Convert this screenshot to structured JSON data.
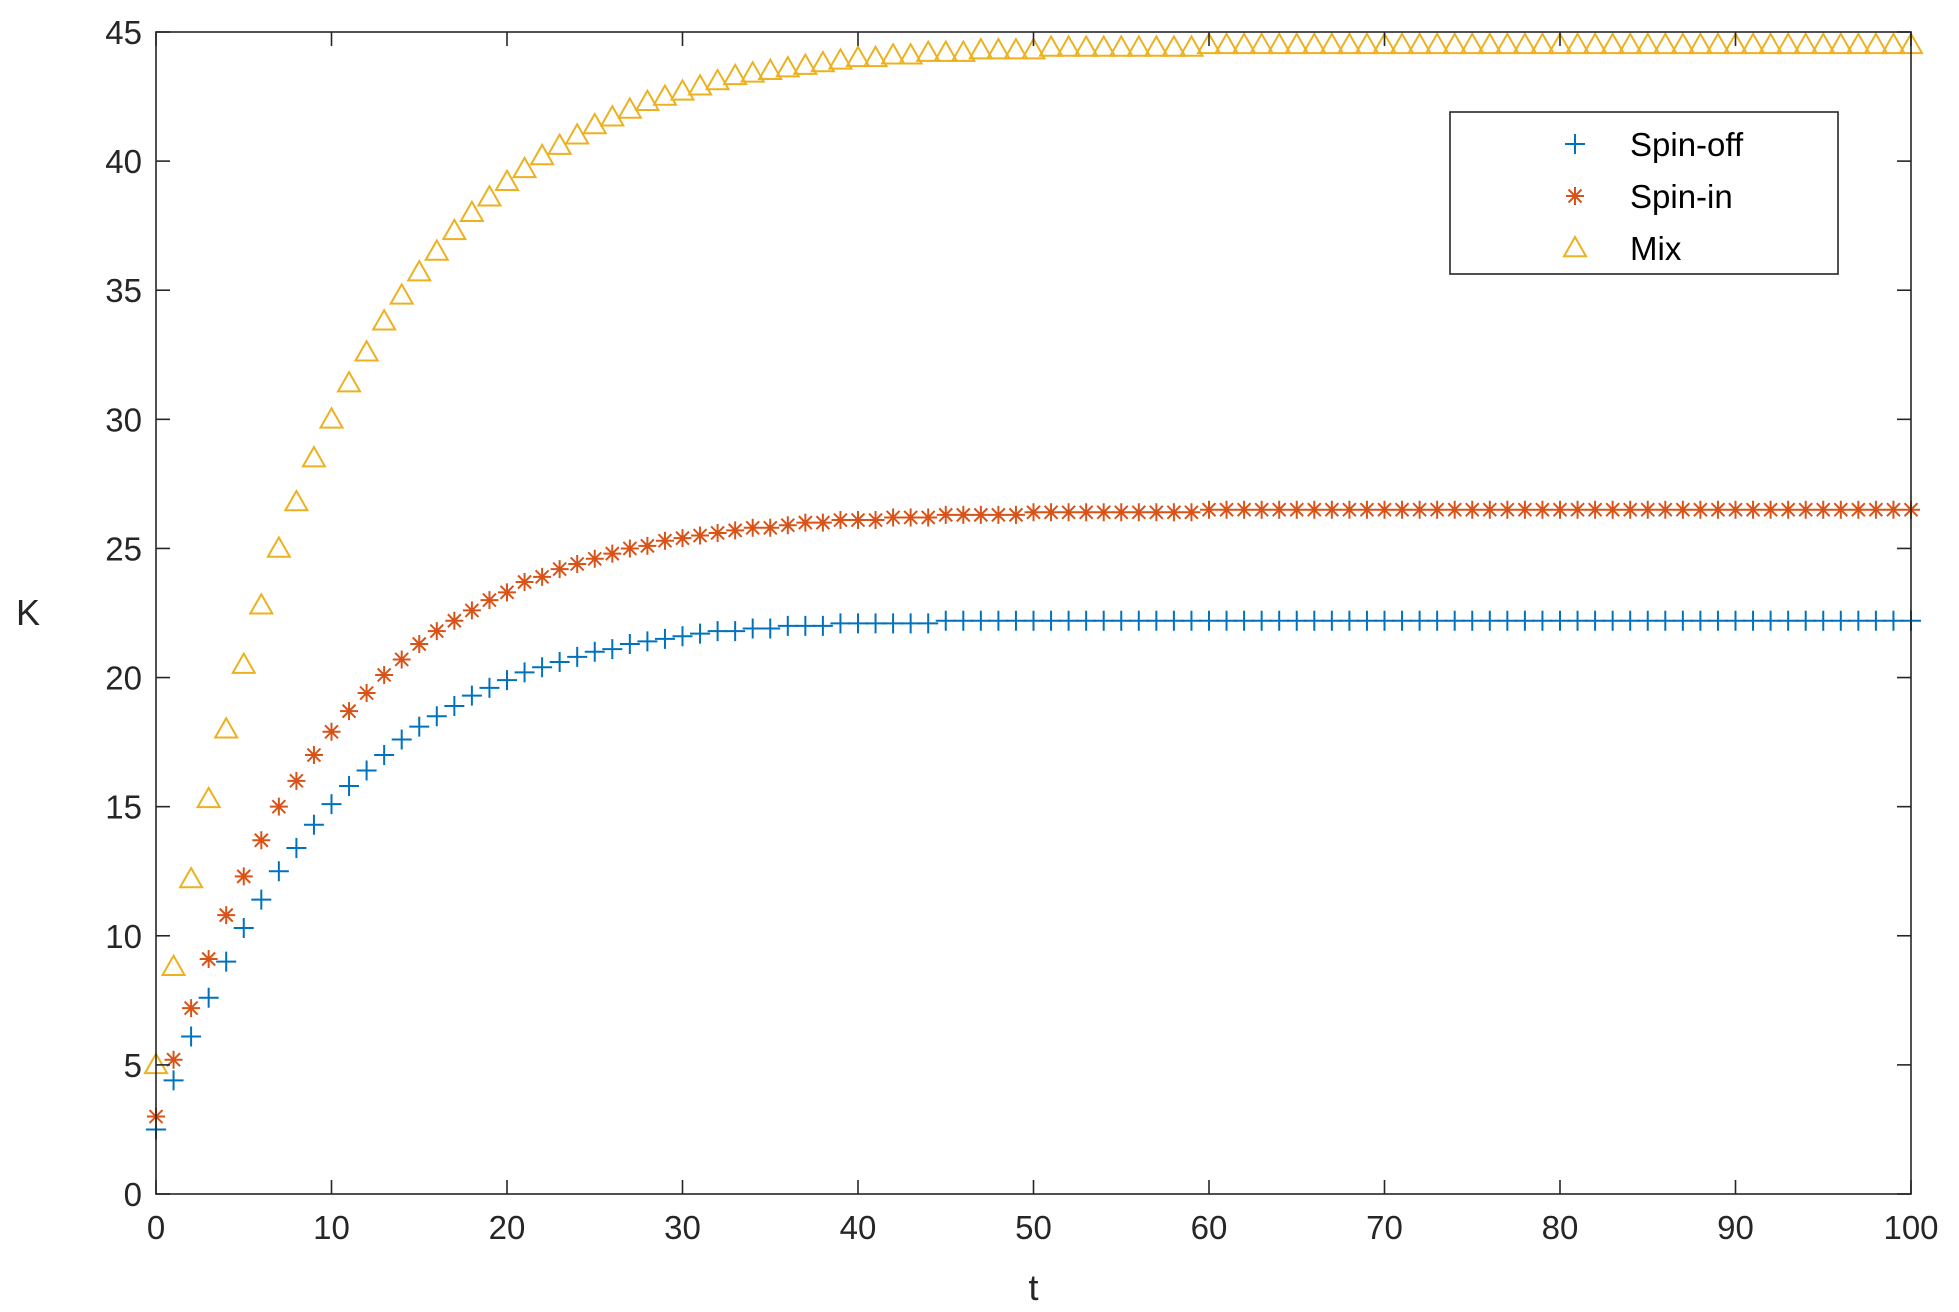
{
  "chart_data": {
    "type": "scatter",
    "xlabel": "t",
    "ylabel": "K",
    "xlim": [
      0,
      100
    ],
    "ylim": [
      0,
      45
    ],
    "xticks": [
      "0",
      "10",
      "20",
      "30",
      "40",
      "50",
      "60",
      "70",
      "80",
      "90",
      "100"
    ],
    "yticks": [
      "0",
      "5",
      "10",
      "15",
      "20",
      "25",
      "30",
      "35",
      "40",
      "45"
    ],
    "grid": false,
    "legend_position": "top-right",
    "x": [
      0,
      1,
      2,
      3,
      4,
      5,
      6,
      7,
      8,
      9,
      10,
      11,
      12,
      13,
      14,
      15,
      16,
      17,
      18,
      19,
      20,
      21,
      22,
      23,
      24,
      25,
      26,
      27,
      28,
      29,
      30,
      31,
      32,
      33,
      34,
      35,
      36,
      37,
      38,
      39,
      40,
      41,
      42,
      43,
      44,
      45,
      46,
      47,
      48,
      49,
      50,
      51,
      52,
      53,
      54,
      55,
      56,
      57,
      58,
      59,
      60,
      61,
      62,
      63,
      64,
      65,
      66,
      67,
      68,
      69,
      70,
      71,
      72,
      73,
      74,
      75,
      76,
      77,
      78,
      79,
      80,
      81,
      82,
      83,
      84,
      85,
      86,
      87,
      88,
      89,
      90,
      91,
      92,
      93,
      94,
      95,
      96,
      97,
      98,
      99,
      100
    ],
    "series": [
      {
        "name": "Spin-off",
        "marker": "plus",
        "color": "#0072BD",
        "values": [
          2.5,
          4.4,
          6.1,
          7.6,
          9.0,
          10.3,
          11.4,
          12.5,
          13.4,
          14.3,
          15.1,
          15.8,
          16.4,
          17.0,
          17.6,
          18.1,
          18.5,
          18.9,
          19.3,
          19.6,
          19.9,
          20.2,
          20.4,
          20.6,
          20.8,
          21.0,
          21.1,
          21.3,
          21.4,
          21.5,
          21.6,
          21.7,
          21.8,
          21.8,
          21.9,
          21.9,
          22.0,
          22.0,
          22.0,
          22.1,
          22.1,
          22.1,
          22.1,
          22.1,
          22.1,
          22.2,
          22.2,
          22.2,
          22.2,
          22.2,
          22.2,
          22.2,
          22.2,
          22.2,
          22.2,
          22.2,
          22.2,
          22.2,
          22.2,
          22.2,
          22.2,
          22.2,
          22.2,
          22.2,
          22.2,
          22.2,
          22.2,
          22.2,
          22.2,
          22.2,
          22.2,
          22.2,
          22.2,
          22.2,
          22.2,
          22.2,
          22.2,
          22.2,
          22.2,
          22.2,
          22.2,
          22.2,
          22.2,
          22.2,
          22.2,
          22.2,
          22.2,
          22.2,
          22.2,
          22.2,
          22.2,
          22.2,
          22.2,
          22.2,
          22.2,
          22.2,
          22.2,
          22.2,
          22.2,
          22.2,
          22.2
        ]
      },
      {
        "name": "Spin-in",
        "marker": "asterisk",
        "color": "#D95319",
        "values": [
          3.0,
          5.2,
          7.2,
          9.1,
          10.8,
          12.3,
          13.7,
          15.0,
          16.0,
          17.0,
          17.9,
          18.7,
          19.4,
          20.1,
          20.7,
          21.3,
          21.8,
          22.2,
          22.6,
          23.0,
          23.3,
          23.7,
          23.9,
          24.2,
          24.4,
          24.6,
          24.8,
          25.0,
          25.1,
          25.3,
          25.4,
          25.5,
          25.6,
          25.7,
          25.8,
          25.8,
          25.9,
          26.0,
          26.0,
          26.1,
          26.1,
          26.1,
          26.2,
          26.2,
          26.2,
          26.3,
          26.3,
          26.3,
          26.3,
          26.3,
          26.4,
          26.4,
          26.4,
          26.4,
          26.4,
          26.4,
          26.4,
          26.4,
          26.4,
          26.4,
          26.5,
          26.5,
          26.5,
          26.5,
          26.5,
          26.5,
          26.5,
          26.5,
          26.5,
          26.5,
          26.5,
          26.5,
          26.5,
          26.5,
          26.5,
          26.5,
          26.5,
          26.5,
          26.5,
          26.5,
          26.5,
          26.5,
          26.5,
          26.5,
          26.5,
          26.5,
          26.5,
          26.5,
          26.5,
          26.5,
          26.5,
          26.5,
          26.5,
          26.5,
          26.5,
          26.5,
          26.5,
          26.5,
          26.5,
          26.5,
          26.5
        ]
      },
      {
        "name": "Mix",
        "marker": "triangle",
        "color": "#EDB120",
        "values": [
          5.0,
          8.8,
          12.2,
          15.3,
          18.0,
          20.5,
          22.8,
          25.0,
          26.8,
          28.5,
          30.0,
          31.4,
          32.6,
          33.8,
          34.8,
          35.7,
          36.5,
          37.3,
          38.0,
          38.6,
          39.2,
          39.7,
          40.2,
          40.6,
          41.0,
          41.4,
          41.7,
          42.0,
          42.3,
          42.5,
          42.7,
          42.9,
          43.1,
          43.3,
          43.4,
          43.5,
          43.6,
          43.7,
          43.8,
          43.9,
          44.0,
          44.0,
          44.1,
          44.1,
          44.2,
          44.2,
          44.2,
          44.3,
          44.3,
          44.3,
          44.3,
          44.4,
          44.4,
          44.4,
          44.4,
          44.4,
          44.4,
          44.4,
          44.4,
          44.4,
          44.5,
          44.5,
          44.5,
          44.5,
          44.5,
          44.5,
          44.5,
          44.5,
          44.5,
          44.5,
          44.5,
          44.5,
          44.5,
          44.5,
          44.5,
          44.5,
          44.5,
          44.5,
          44.5,
          44.5,
          44.5,
          44.5,
          44.5,
          44.5,
          44.5,
          44.5,
          44.5,
          44.5,
          44.5,
          44.5,
          44.5,
          44.5,
          44.5,
          44.5,
          44.5,
          44.5,
          44.5,
          44.5,
          44.5,
          44.5,
          44.5
        ]
      }
    ]
  }
}
